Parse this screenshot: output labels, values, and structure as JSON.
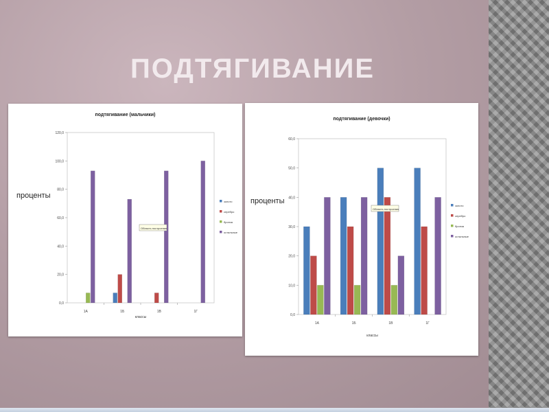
{
  "slide": {
    "title": "Подтягивание"
  },
  "colors": {
    "золото": "#4a7ebb",
    "серебро": "#be4b48",
    "бронза": "#98b954",
    "остальные": "#7d60a0"
  },
  "chart_data": [
    {
      "id": "boys",
      "type": "bar",
      "title": "подтягивание (мальчики)",
      "ylabel": "проценты",
      "xlabel": "классы",
      "plot_area_label": "Область построения",
      "categories": [
        "1А",
        "1Б",
        "1В",
        "1Г"
      ],
      "ylim": [
        0,
        120
      ],
      "yticks": [
        "0,0",
        "20,0",
        "40,0",
        "60,0",
        "80,0",
        "100,0",
        "120,0"
      ],
      "grid": false,
      "legend_position": "right",
      "series": [
        {
          "name": "золото",
          "values": [
            0,
            7,
            0,
            0
          ]
        },
        {
          "name": "серебро",
          "values": [
            0,
            20,
            7,
            0
          ]
        },
        {
          "name": "бронза",
          "values": [
            7,
            0,
            0,
            0
          ]
        },
        {
          "name": "остальные",
          "values": [
            93,
            73,
            93,
            100
          ]
        }
      ]
    },
    {
      "id": "girls",
      "type": "bar",
      "title": "подтягивание (девочки)",
      "ylabel": "проценты",
      "xlabel": "классы",
      "plot_area_label": "Область построения",
      "categories": [
        "1А",
        "1Б",
        "1В",
        "1Г"
      ],
      "ylim": [
        0,
        60
      ],
      "yticks": [
        "0,0",
        "10,0",
        "20,0",
        "30,0",
        "40,0",
        "50,0",
        "60,0"
      ],
      "grid": false,
      "legend_position": "right",
      "series": [
        {
          "name": "золото",
          "values": [
            30,
            40,
            50,
            50
          ]
        },
        {
          "name": "серебро",
          "values": [
            20,
            30,
            40,
            30
          ]
        },
        {
          "name": "бронза",
          "values": [
            10,
            10,
            10,
            0
          ]
        },
        {
          "name": "остальные",
          "values": [
            40,
            40,
            20,
            40
          ]
        }
      ]
    }
  ]
}
